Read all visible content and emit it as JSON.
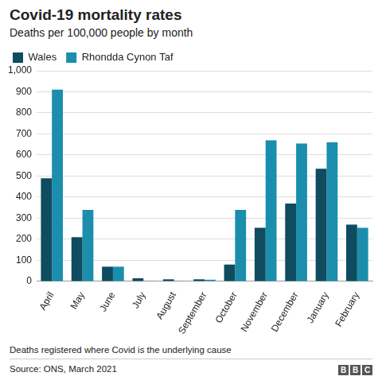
{
  "chart_data": {
    "type": "bar",
    "title": "Covid-19 mortality rates",
    "subtitle": "Deaths per 100,000 people by month",
    "categories": [
      "April",
      "May",
      "June",
      "July",
      "August",
      "September",
      "October",
      "November",
      "December",
      "January",
      "February"
    ],
    "series": [
      {
        "name": "Wales",
        "color": "#0f4c5f",
        "values": [
          490,
          210,
          70,
          15,
          10,
          10,
          80,
          255,
          370,
          535,
          270
        ]
      },
      {
        "name": "Rhondda Cynon Taf",
        "color": "#1b8ead",
        "values": [
          910,
          340,
          70,
          3,
          3,
          8,
          340,
          670,
          655,
          660,
          255
        ]
      }
    ],
    "ylim": [
      0,
      1000
    ],
    "yticks": [
      0,
      100,
      200,
      300,
      400,
      500,
      600,
      700,
      800,
      900,
      {
        "value": 1000,
        "label": "1,000"
      }
    ],
    "grid": true,
    "legend": "top-left",
    "annotations": [
      "Deaths registered where Covid is the underlying cause",
      "Source: ONS, March 2021"
    ],
    "logo": "BBC"
  }
}
